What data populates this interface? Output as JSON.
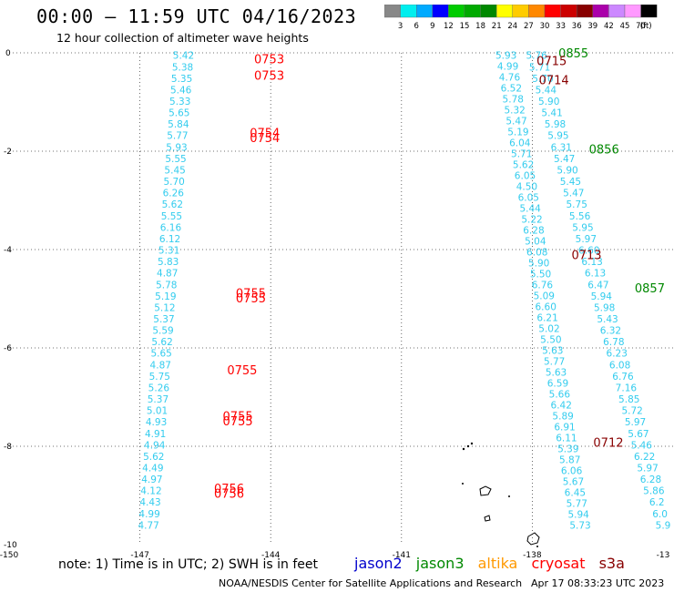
{
  "title": "00:00 – 11:59 UTC 04/16/2023",
  "subtitle": "12 hour collection of altimeter wave heights",
  "colorbar": {
    "labels": [
      "3",
      "6",
      "9",
      "12",
      "15",
      "18",
      "21",
      "24",
      "27",
      "30",
      "33",
      "36",
      "39",
      "42",
      "45",
      "70"
    ],
    "unit": "(ft)",
    "colors": [
      "#888888",
      "#00eeee",
      "#00aaff",
      "#0000ff",
      "#00cc00",
      "#00aa00",
      "#008800",
      "#ffff00",
      "#ffcc00",
      "#ff8800",
      "#ff0000",
      "#cc0000",
      "#880000",
      "#aa00aa",
      "#cc88ff",
      "#ff99ff",
      "#000000"
    ]
  },
  "map": {
    "lon_ticks": [
      "-150",
      "-147",
      "-144",
      "-141",
      "-138",
      "-13"
    ],
    "lat_ticks": [
      "0",
      "-2",
      "-4",
      "-6",
      "-8",
      "-10"
    ],
    "lon_range": [
      -150,
      -135
    ],
    "lat_range": [
      -10,
      0
    ]
  },
  "tracks": [
    {
      "name": "track-a",
      "color": "#33ccee",
      "lon_start": -146.0,
      "lon_end": -146.8,
      "values": [
        "5.42",
        "5.38",
        "5.35",
        "5.46",
        "5.33",
        "5.65",
        "5.84",
        "5.77",
        "5.93",
        "5.55",
        "5.45",
        "5.70",
        "6.26",
        "5.62",
        "5.55",
        "6.16",
        "6.12",
        "5.31",
        "5.83",
        "4.87",
        "5.78",
        "5.19",
        "5.12",
        "5.37",
        "5.59",
        "5.62",
        "5.65",
        "4.87",
        "5.75",
        "5.26",
        "5.37",
        "5.01",
        "4.93",
        "4.91",
        "4.94",
        "5.62",
        "4.49",
        "4.97",
        "4.12",
        "4.43",
        "4.99",
        "4.77"
      ]
    },
    {
      "name": "track-b",
      "color": "#33ccee",
      "lon_start": -138.6,
      "lon_end": -136.9,
      "values": [
        "5.93",
        "4.99",
        "4.76",
        "6.52",
        "5.78",
        "5.32",
        "5.47",
        "5.19",
        "6.04",
        "5.71",
        "5.62",
        "6.05",
        "4.50",
        "6.05",
        "5.44",
        "5.22",
        "6.28",
        "5.04",
        "6.08",
        "5.90",
        "5.50",
        "6.76",
        "5.09",
        "6.60",
        "6.21",
        "5.02",
        "5.50",
        "5.63",
        "5.77",
        "5.63",
        "6.59",
        "5.66",
        "6.42",
        "5.89",
        "6.91",
        "6.11",
        "5.39",
        "5.87",
        "6.06",
        "5.67",
        "6.45",
        "5.77",
        "5.94",
        "5.73"
      ]
    },
    {
      "name": "track-c",
      "color": "#33ccee",
      "lon_start": -137.9,
      "lon_end": -135.0,
      "values": [
        "5.76",
        "5.71",
        "5.70",
        "5.44",
        "5.90",
        "5.41",
        "5.98",
        "5.95",
        "6.31",
        "5.47",
        "5.90",
        "5.45",
        "5.47",
        "5.75",
        "5.56",
        "5.95",
        "5.97",
        "6.60",
        "6.13",
        "6.13",
        "6.47",
        "5.94",
        "5.98",
        "5.43",
        "6.32",
        "6.78",
        "6.23",
        "6.08",
        "6.76",
        "7.16",
        "5.85",
        "5.72",
        "5.97",
        "5.67",
        "5.46",
        "6.22",
        "5.97",
        "6.28",
        "5.86",
        "6.2",
        "6.0",
        "5.9"
      ]
    }
  ],
  "time_labels": [
    {
      "text": "0753",
      "lat": -0.12,
      "lon": -144.38,
      "color": "#ff0000"
    },
    {
      "text": "0753",
      "lat": -0.45,
      "lon": -144.38,
      "color": "#ff0000"
    },
    {
      "text": "0754",
      "lat": -1.62,
      "lon": -144.48,
      "color": "#ff0000"
    },
    {
      "text": "0754",
      "lat": -1.72,
      "lon": -144.48,
      "color": "#ff0000"
    },
    {
      "text": "0755",
      "lat": -4.88,
      "lon": -144.8,
      "color": "#ff0000"
    },
    {
      "text": "0755",
      "lat": -4.98,
      "lon": -144.8,
      "color": "#ff0000"
    },
    {
      "text": "0755",
      "lat": -6.44,
      "lon": -145.0,
      "color": "#ff0000"
    },
    {
      "text": "0755",
      "lat": -7.38,
      "lon": -145.1,
      "color": "#ff0000"
    },
    {
      "text": "0755",
      "lat": -7.48,
      "lon": -145.1,
      "color": "#ff0000"
    },
    {
      "text": "0756",
      "lat": -8.85,
      "lon": -145.3,
      "color": "#ff0000"
    },
    {
      "text": "0756",
      "lat": -8.95,
      "lon": -145.3,
      "color": "#ff0000"
    },
    {
      "text": "0855",
      "lat": 0.0,
      "lon": -137.4,
      "color": "#008800"
    },
    {
      "text": "0715",
      "lat": -0.16,
      "lon": -137.9,
      "color": "#880000"
    },
    {
      "text": "0714",
      "lat": -0.55,
      "lon": -137.85,
      "color": "#880000"
    },
    {
      "text": "0856",
      "lat": -1.95,
      "lon": -136.7,
      "color": "#008800"
    },
    {
      "text": "0713",
      "lat": -4.1,
      "lon": -137.1,
      "color": "#880000"
    },
    {
      "text": "0857",
      "lat": -4.78,
      "lon": -135.65,
      "color": "#008800"
    },
    {
      "text": "0712",
      "lat": -7.92,
      "lon": -136.6,
      "color": "#880000"
    }
  ],
  "footnote": "note:  1) Time is in UTC;  2) SWH is in feet",
  "satellites": [
    {
      "name": "jason2",
      "color": "#0000cc"
    },
    {
      "name": "jason3",
      "color": "#008800"
    },
    {
      "name": "altika",
      "color": "#ff9900"
    },
    {
      "name": "cryosat",
      "color": "#ff0000"
    },
    {
      "name": "s3a",
      "color": "#880000"
    }
  ],
  "credit": "NOAA/NESDIS Center for Satellite Applications and Research",
  "timestamp": "Apr 17 08:33:23 UTC 2023"
}
